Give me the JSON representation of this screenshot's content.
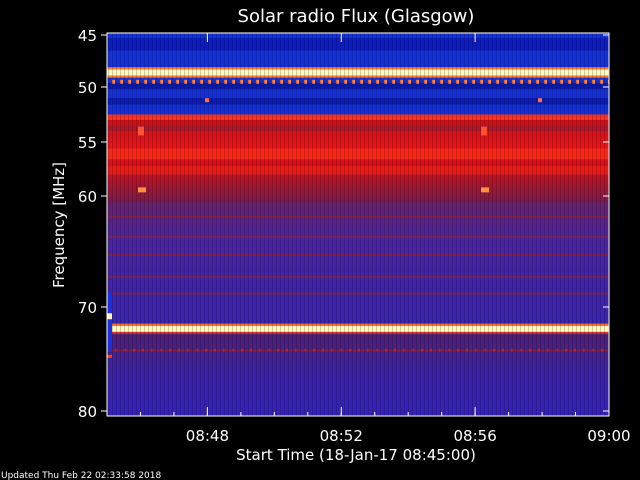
{
  "chart_data": {
    "type": "heatmap",
    "title": "Solar radio Flux (Glasgow)",
    "xlabel": "Start Time (18-Jan-17 08:45:00)",
    "ylabel": "Frequency [MHz]",
    "x_range": [
      "08:45",
      "09:00"
    ],
    "x_ticks": [
      "08:48",
      "08:52",
      "08:56",
      "09:00"
    ],
    "y_range": [
      45,
      80
    ],
    "y_ticks": [
      "45",
      "50",
      "55",
      "60",
      "70",
      "80"
    ],
    "colormap": [
      "#0b0b8f",
      "#2036e0",
      "#5a2aa0",
      "#8a1a50",
      "#c01018",
      "#ff2010",
      "#ffb060",
      "#ffffe0"
    ],
    "bands": [
      {
        "from": 45.0,
        "to": 48.3,
        "level": "blue"
      },
      {
        "from": 48.3,
        "to": 48.9,
        "level": "saturated"
      },
      {
        "from": 48.9,
        "to": 52.5,
        "level": "blue"
      },
      {
        "from": 52.5,
        "to": 53.0,
        "level": "high"
      },
      {
        "from": 53.0,
        "to": 60.5,
        "level": "red"
      },
      {
        "from": 60.5,
        "to": 71.8,
        "level": "purple"
      },
      {
        "from": 71.8,
        "to": 72.4,
        "level": "saturated"
      },
      {
        "from": 72.4,
        "to": 80.0,
        "level": "purple"
      }
    ]
  },
  "footer": {
    "updated": "Updated Thu Feb 22 02:33:58 2018"
  }
}
